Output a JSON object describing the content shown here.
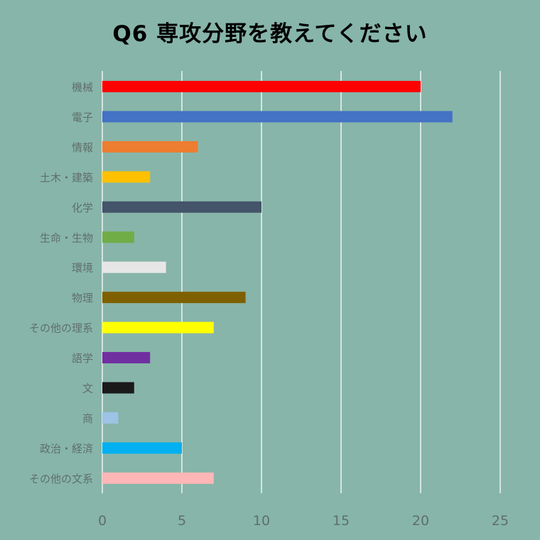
{
  "chart_data": {
    "type": "bar",
    "orientation": "horizontal",
    "title": "Q6 専攻分野を教えてください",
    "categories": [
      "機械",
      "電子",
      "情報",
      "土木・建築",
      "化学",
      "生命・生物",
      "環境",
      "物理",
      "その他の理系",
      "語学",
      "文",
      "商",
      "政治・経済",
      "その他の文系"
    ],
    "values": [
      20,
      22,
      6,
      3,
      10,
      2,
      4,
      9,
      7,
      3,
      2,
      1,
      5,
      7
    ],
    "colors": [
      "#ff0000",
      "#4472c4",
      "#ed7d31",
      "#ffc000",
      "#44546a",
      "#70ad47",
      "#e7e6e6",
      "#7f6000",
      "#ffff00",
      "#7030a0",
      "#1a1a1a",
      "#9dc3e6",
      "#00b0f0",
      "#ffb6b6"
    ],
    "xlim": [
      0,
      25
    ],
    "xticks": [
      0,
      5,
      10,
      15,
      20,
      25
    ],
    "xlabel": "",
    "ylabel": "",
    "grid": "vertical",
    "legend": "none"
  }
}
